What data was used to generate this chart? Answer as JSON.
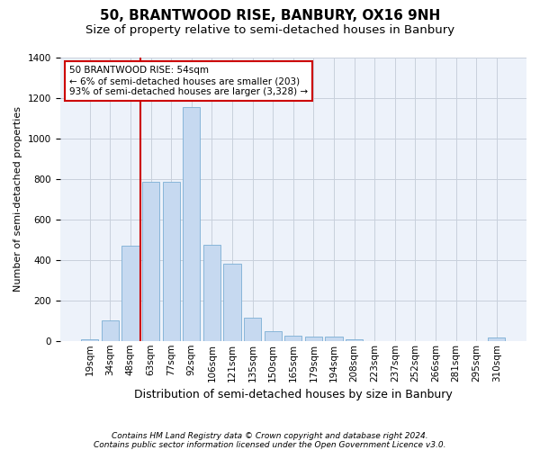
{
  "title1": "50, BRANTWOOD RISE, BANBURY, OX16 9NH",
  "title2": "Size of property relative to semi-detached houses in Banbury",
  "xlabel": "Distribution of semi-detached houses by size in Banbury",
  "ylabel": "Number of semi-detached properties",
  "categories": [
    "19sqm",
    "34sqm",
    "48sqm",
    "63sqm",
    "77sqm",
    "92sqm",
    "106sqm",
    "121sqm",
    "135sqm",
    "150sqm",
    "165sqm",
    "179sqm",
    "194sqm",
    "208sqm",
    "223sqm",
    "237sqm",
    "252sqm",
    "266sqm",
    "281sqm",
    "295sqm",
    "310sqm"
  ],
  "values": [
    10,
    103,
    469,
    785,
    785,
    1155,
    474,
    382,
    114,
    50,
    27,
    20,
    20,
    10,
    0,
    0,
    0,
    0,
    0,
    0,
    15
  ],
  "bar_color": "#c6d9f0",
  "bar_edge_color": "#7bafd4",
  "annotation_text": "50 BRANTWOOD RISE: 54sqm\n← 6% of semi-detached houses are smaller (203)\n93% of semi-detached houses are larger (3,328) →",
  "vline_x_index": 2.5,
  "vline_color": "#cc0000",
  "box_color": "#cc0000",
  "footnote1": "Contains HM Land Registry data © Crown copyright and database right 2024.",
  "footnote2": "Contains public sector information licensed under the Open Government Licence v3.0.",
  "ylim": [
    0,
    1400
  ],
  "title1_fontsize": 11,
  "title2_fontsize": 9.5,
  "xlabel_fontsize": 9,
  "ylabel_fontsize": 8,
  "tick_fontsize": 7.5,
  "annotation_fontsize": 7.5,
  "footnote_fontsize": 6.5,
  "background_color": "#edf2fa",
  "grid_color": "#c8d0dc"
}
